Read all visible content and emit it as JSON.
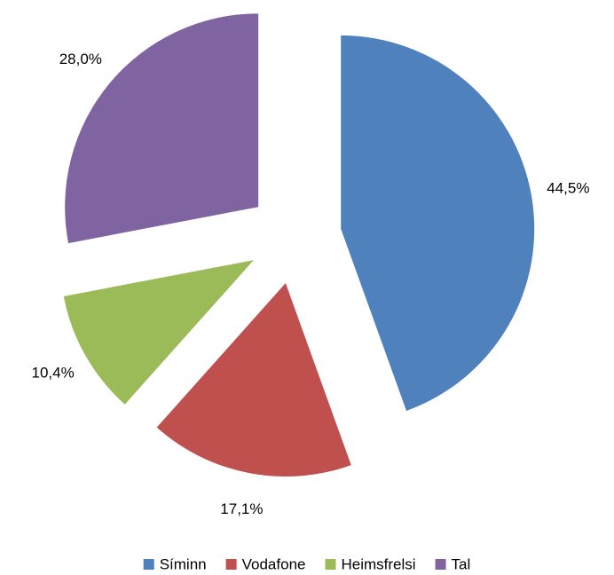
{
  "chart_data": {
    "type": "pie",
    "categories": [
      "Síminn",
      "Vodafone",
      "Heimsfrelsi",
      "Tal"
    ],
    "values": [
      44.5,
      17.1,
      10.4,
      28.0
    ],
    "value_labels": [
      "44,5%",
      "17,1%",
      "10,4%",
      "28,0%"
    ],
    "colors": [
      "#4f81bd",
      "#c0504d",
      "#9bbb59",
      "#8064a2"
    ],
    "exploded": true,
    "legend": "bottom"
  }
}
